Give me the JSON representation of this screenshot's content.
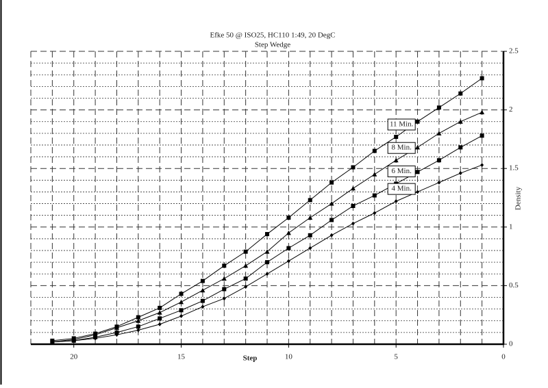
{
  "chart_data": {
    "type": "line",
    "title": "Efke 50 @ ISO25, HC110 1:49, 20 DegC",
    "subtitle": "Step Wedge",
    "x_label": "Step",
    "y_label": "Density",
    "x": [
      1,
      2,
      3,
      4,
      5,
      6,
      7,
      8,
      9,
      10,
      11,
      12,
      13,
      14,
      15,
      16,
      17,
      18,
      19,
      20,
      21
    ],
    "xlim": [
      22,
      0
    ],
    "xticks": [
      20,
      15,
      10,
      5,
      0
    ],
    "ylim": [
      0,
      2.5
    ],
    "yticks": [
      0,
      0.5,
      1,
      1.5,
      2,
      2.5
    ],
    "grid": true,
    "series": [
      {
        "name": "11 Min.",
        "color": "#000000",
        "marker": "square",
        "values": [
          2.27,
          2.14,
          2.02,
          1.9,
          1.77,
          1.65,
          1.51,
          1.38,
          1.23,
          1.08,
          0.94,
          0.79,
          0.67,
          0.54,
          0.43,
          0.31,
          0.23,
          0.15,
          0.09,
          0.05,
          0.03
        ]
      },
      {
        "name": "8 Min.",
        "color": "#000000",
        "marker": "triangle",
        "values": [
          1.98,
          1.9,
          1.8,
          1.68,
          1.57,
          1.45,
          1.33,
          1.2,
          1.08,
          0.95,
          0.79,
          0.67,
          0.56,
          0.46,
          0.36,
          0.27,
          0.2,
          0.14,
          0.08,
          0.04,
          0.02
        ]
      },
      {
        "name": "6 Min.",
        "color": "#000000",
        "marker": "square",
        "values": [
          1.78,
          1.68,
          1.57,
          1.47,
          1.37,
          1.27,
          1.18,
          1.06,
          0.93,
          0.82,
          0.7,
          0.56,
          0.47,
          0.37,
          0.29,
          0.22,
          0.15,
          0.1,
          0.06,
          0.03,
          0.02
        ]
      },
      {
        "name": "4 Min.",
        "color": "#000000",
        "marker": "diamond",
        "values": [
          1.53,
          1.46,
          1.38,
          1.3,
          1.22,
          1.12,
          1.03,
          0.93,
          0.82,
          0.71,
          0.6,
          0.49,
          0.39,
          0.32,
          0.24,
          0.17,
          0.12,
          0.08,
          0.05,
          0.03,
          0.02
        ]
      }
    ]
  }
}
